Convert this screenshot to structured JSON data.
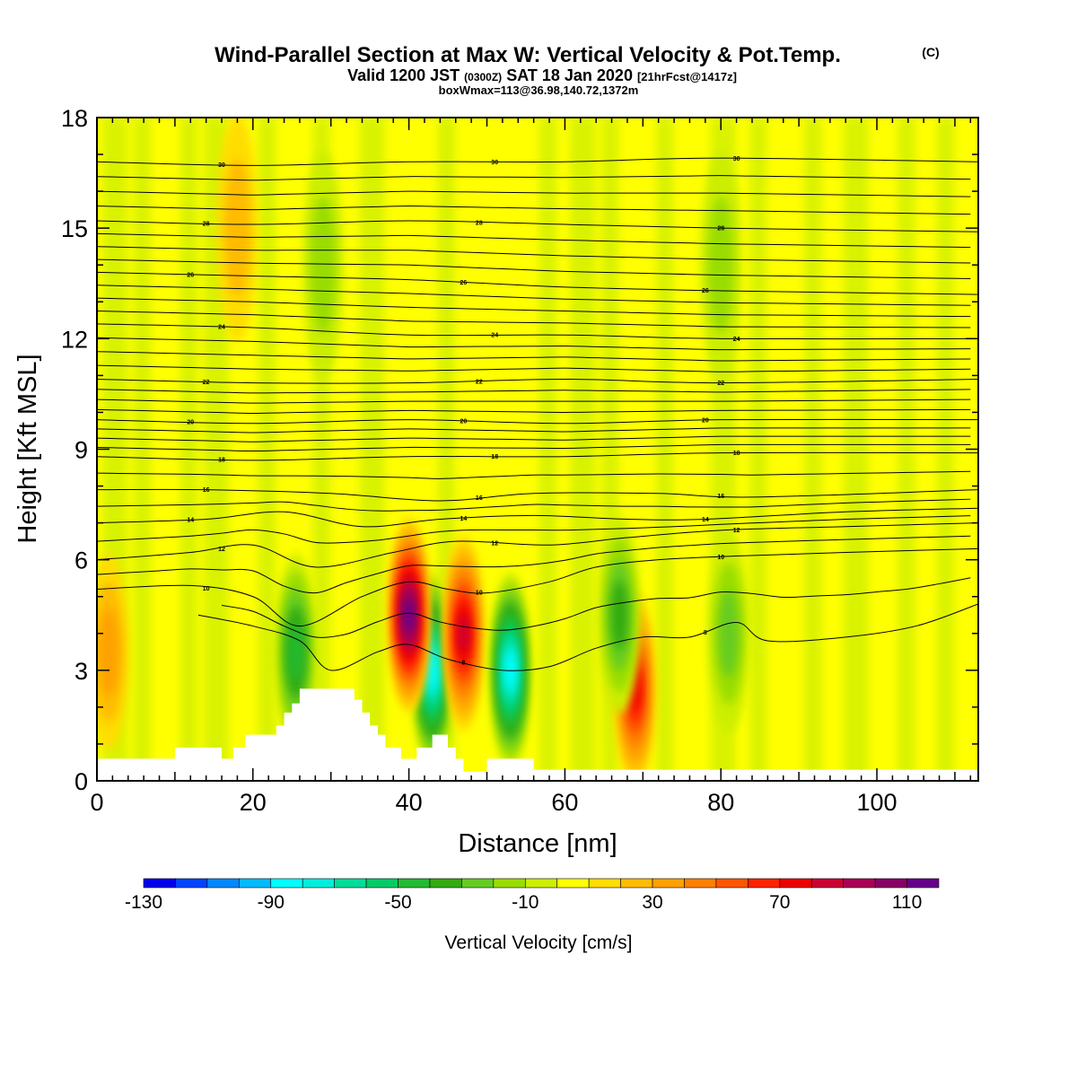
{
  "title": {
    "main": "Wind-Parallel Section at Max W: Vertical Velocity & Pot.Temp.",
    "copyright": "(C)",
    "line2_a": "Valid 1200 JST",
    "line2_b": "(0300Z)",
    "line2_c": "SAT 18 Jan 2020",
    "line2_d": "[21hrFcst@1417z]",
    "line3": "boxWmax=113@36.98,140.72,1372m"
  },
  "chart_data": {
    "type": "heatmap",
    "xlabel": "Distance [nm]",
    "ylabel": "Height [Kft MSL]",
    "xlim": [
      0,
      113
    ],
    "ylim": [
      0,
      18
    ],
    "x_ticks": [
      0,
      20,
      40,
      60,
      80,
      100
    ],
    "y_ticks": [
      0,
      3,
      6,
      9,
      12,
      15,
      18
    ],
    "background_value_cm_s": 0,
    "colorbar": {
      "title": "Vertical Velocity [cm/s]",
      "tick_labels": [
        -130,
        -90,
        -50,
        -10,
        30,
        70,
        110
      ],
      "levels": [
        -130,
        -120,
        -110,
        -100,
        -90,
        -80,
        -70,
        -60,
        -50,
        -40,
        -30,
        -20,
        -10,
        0,
        10,
        20,
        30,
        40,
        50,
        60,
        70,
        80,
        90,
        100,
        110,
        120
      ],
      "colors": [
        "#0000ee",
        "#0044ff",
        "#0088ff",
        "#00bbff",
        "#00ffff",
        "#00eedd",
        "#00dd99",
        "#00cc66",
        "#22bb33",
        "#33aa11",
        "#66cc22",
        "#99dd00",
        "#ccee00",
        "#ffff00",
        "#ffdd00",
        "#ffbb00",
        "#ffa000",
        "#ff8000",
        "#ff5500",
        "#ff2200",
        "#ee0000",
        "#cc0033",
        "#aa0055",
        "#880066",
        "#660088"
      ]
    },
    "vertical_velocity_features": [
      {
        "x": 43,
        "y": 3.0,
        "value": -90
      },
      {
        "x": 40,
        "y": 4.5,
        "value": 110
      },
      {
        "x": 47,
        "y": 4.0,
        "value": 80
      },
      {
        "x": 53,
        "y": 3.0,
        "value": -90
      },
      {
        "x": 69,
        "y": 2.5,
        "value": 70
      },
      {
        "x": 25.5,
        "y": 3.5,
        "value": -50
      },
      {
        "x": 67,
        "y": 4.5,
        "value": -40
      },
      {
        "x": 81,
        "y": 4.0,
        "value": -30
      },
      {
        "x": 29,
        "y": 14.0,
        "value": -20
      },
      {
        "x": 80,
        "y": 14.0,
        "value": -20
      },
      {
        "x": 1.5,
        "y": 3.5,
        "value": 30
      },
      {
        "x": 18,
        "y": 15.0,
        "value": 20
      }
    ],
    "theta_contours": [
      {
        "level": 8,
        "label": "8",
        "points": [
          [
            13,
            4.5
          ],
          [
            20,
            4.2
          ],
          [
            26,
            3.8
          ],
          [
            30,
            3.0
          ],
          [
            36,
            3.5
          ],
          [
            40,
            3.7
          ],
          [
            45,
            3.3
          ],
          [
            52,
            3.0
          ],
          [
            58,
            3.1
          ],
          [
            64,
            3.6
          ],
          [
            70,
            3.9
          ],
          [
            76,
            3.9
          ],
          [
            82,
            4.3
          ],
          [
            86,
            3.8
          ],
          [
            96,
            3.9
          ],
          [
            105,
            4.2
          ],
          [
            113,
            4.8
          ]
        ]
      },
      {
        "level": 10,
        "label": "10",
        "points": [
          [
            0,
            5.2
          ],
          [
            12,
            5.3
          ],
          [
            20,
            5.0
          ],
          [
            26,
            4.2
          ],
          [
            34,
            5.0
          ],
          [
            40,
            5.4
          ],
          [
            45,
            5.2
          ],
          [
            50,
            5.1
          ],
          [
            58,
            5.4
          ],
          [
            64,
            5.8
          ],
          [
            72,
            6.0
          ],
          [
            82,
            6.1
          ],
          [
            96,
            6.2
          ],
          [
            113,
            6.3
          ]
        ]
      },
      {
        "level": 12,
        "label": "12",
        "points": [
          [
            0,
            6.0
          ],
          [
            12,
            6.2
          ],
          [
            20,
            6.4
          ],
          [
            28,
            5.8
          ],
          [
            38,
            6.2
          ],
          [
            46,
            6.5
          ],
          [
            58,
            6.4
          ],
          [
            68,
            6.6
          ],
          [
            80,
            6.8
          ],
          [
            96,
            6.9
          ],
          [
            113,
            7.0
          ]
        ]
      },
      {
        "level": 14,
        "label": "14",
        "points": [
          [
            0,
            7.0
          ],
          [
            14,
            7.1
          ],
          [
            24,
            7.3
          ],
          [
            34,
            6.9
          ],
          [
            44,
            7.1
          ],
          [
            56,
            7.2
          ],
          [
            68,
            7.1
          ],
          [
            78,
            7.1
          ],
          [
            96,
            7.3
          ],
          [
            113,
            7.4
          ]
        ]
      },
      {
        "level": 16,
        "label": "16",
        "points": [
          [
            0,
            7.9
          ],
          [
            14,
            7.9
          ],
          [
            30,
            7.8
          ],
          [
            44,
            7.6
          ],
          [
            56,
            7.8
          ],
          [
            72,
            7.8
          ],
          [
            84,
            7.7
          ],
          [
            113,
            7.9
          ]
        ]
      },
      {
        "level": 18,
        "label": "18",
        "points": [
          [
            0,
            8.8
          ],
          [
            20,
            8.7
          ],
          [
            40,
            8.8
          ],
          [
            60,
            8.8
          ],
          [
            80,
            8.9
          ],
          [
            113,
            8.9
          ]
        ]
      },
      {
        "level": 20,
        "label": "20",
        "points": [
          [
            0,
            9.8
          ],
          [
            20,
            9.7
          ],
          [
            40,
            9.8
          ],
          [
            60,
            9.7
          ],
          [
            80,
            9.8
          ],
          [
            113,
            9.8
          ]
        ]
      },
      {
        "level": 22,
        "label": "22",
        "points": [
          [
            0,
            10.9
          ],
          [
            20,
            10.8
          ],
          [
            40,
            10.8
          ],
          [
            60,
            10.9
          ],
          [
            80,
            10.8
          ],
          [
            113,
            10.9
          ]
        ]
      },
      {
        "level": 24,
        "label": "24",
        "points": [
          [
            0,
            12.4
          ],
          [
            20,
            12.3
          ],
          [
            40,
            12.1
          ],
          [
            60,
            12.1
          ],
          [
            80,
            12.0
          ],
          [
            113,
            12.0
          ]
        ]
      },
      {
        "level": 26,
        "label": "26",
        "points": [
          [
            0,
            13.8
          ],
          [
            20,
            13.7
          ],
          [
            40,
            13.6
          ],
          [
            60,
            13.4
          ],
          [
            80,
            13.3
          ],
          [
            113,
            13.2
          ]
        ]
      },
      {
        "level": 28,
        "label": "28",
        "points": [
          [
            0,
            15.2
          ],
          [
            20,
            15.1
          ],
          [
            40,
            15.2
          ],
          [
            60,
            15.1
          ],
          [
            80,
            15.0
          ],
          [
            113,
            14.9
          ]
        ]
      },
      {
        "level": 30,
        "label": "30",
        "points": [
          [
            0,
            16.8
          ],
          [
            20,
            16.7
          ],
          [
            40,
            16.8
          ],
          [
            60,
            16.8
          ],
          [
            80,
            16.9
          ],
          [
            113,
            16.8
          ]
        ]
      }
    ],
    "terrain_kft": [
      [
        0,
        0.6
      ],
      [
        10,
        0.6
      ],
      [
        10,
        0.9
      ],
      [
        16,
        0.9
      ],
      [
        16,
        0.6
      ],
      [
        17.5,
        0.6
      ],
      [
        17.5,
        0.9
      ],
      [
        19,
        0.9
      ],
      [
        19,
        1.25
      ],
      [
        23,
        1.25
      ],
      [
        23,
        1.5
      ],
      [
        24,
        1.5
      ],
      [
        24,
        1.85
      ],
      [
        25,
        1.85
      ],
      [
        25,
        2.1
      ],
      [
        26,
        2.1
      ],
      [
        26,
        2.5
      ],
      [
        33,
        2.5
      ],
      [
        33,
        2.2
      ],
      [
        34,
        2.2
      ],
      [
        34,
        1.85
      ],
      [
        35,
        1.85
      ],
      [
        35,
        1.5
      ],
      [
        36,
        1.5
      ],
      [
        36,
        1.25
      ],
      [
        37,
        1.25
      ],
      [
        37,
        0.9
      ],
      [
        39,
        0.9
      ],
      [
        39,
        0.6
      ],
      [
        41,
        0.6
      ],
      [
        41,
        0.9
      ],
      [
        43,
        0.9
      ],
      [
        43,
        1.25
      ],
      [
        45,
        1.25
      ],
      [
        45,
        0.9
      ],
      [
        46,
        0.9
      ],
      [
        46,
        0.6
      ],
      [
        47,
        0.6
      ],
      [
        47,
        0.25
      ],
      [
        50,
        0.25
      ],
      [
        50,
        0.6
      ],
      [
        56,
        0.6
      ],
      [
        56,
        0.3
      ],
      [
        113,
        0.3
      ]
    ]
  }
}
